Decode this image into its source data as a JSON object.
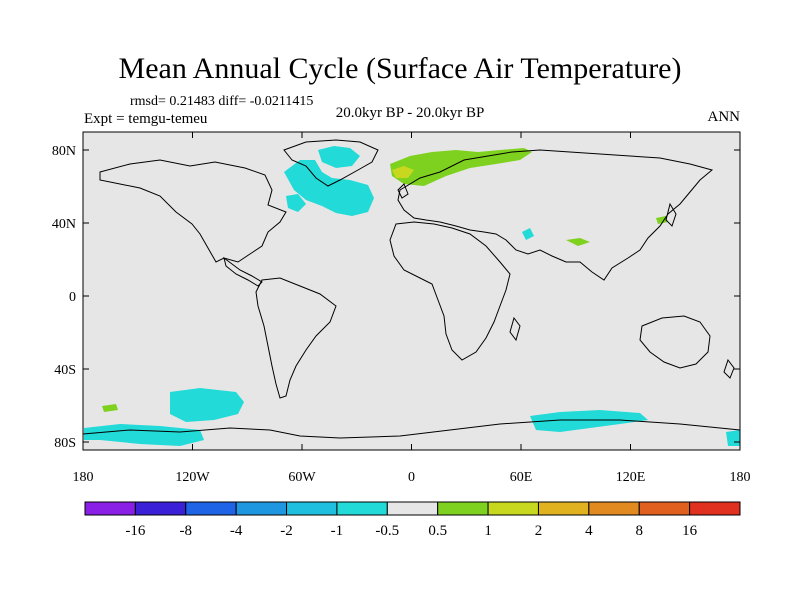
{
  "title": "Mean Annual Cycle (Surface Air Temperature)",
  "stats": "rmsd= 0.21483 diff= -0.0211415",
  "expt": "Expt = temgu-temeu",
  "period": "20.0kyr BP - 20.0kyr BP",
  "season": "ANN",
  "lon_ticks": [
    "180",
    "120W",
    "60W",
    "0",
    "60E",
    "120E",
    "180"
  ],
  "lat_ticks": [
    "80N",
    "40N",
    "0",
    "40S",
    "80S"
  ],
  "colorbar": {
    "colors": [
      "#8a1fe6",
      "#3a20d6",
      "#1f63e6",
      "#1f96e0",
      "#1fbfe0",
      "#22dad7",
      "#e6e6e6",
      "#7ed11f",
      "#c8d81f",
      "#e0b21f",
      "#e08a1f",
      "#e0601f",
      "#e0301f"
    ],
    "labels": [
      "-16",
      "-8",
      "-4",
      "-2",
      "-1",
      "-0.5",
      "0.5",
      "1",
      "2",
      "4",
      "8",
      "16"
    ]
  },
  "anomaly_colors": {
    "cool": "#22dad7",
    "warm": "#7ed11f",
    "hot": "#c8d81f",
    "background": "#e6e6e6"
  }
}
